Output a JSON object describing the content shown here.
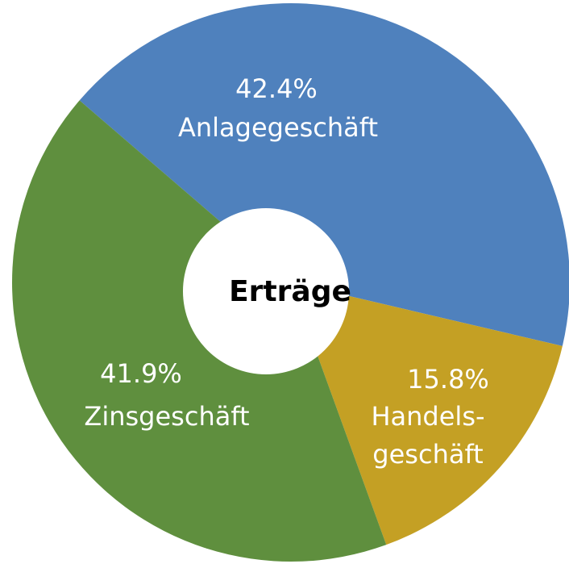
{
  "chart_data": {
    "type": "donut",
    "title": "Erträge",
    "categories": [
      [
        "Anlagegeschäft"
      ],
      [
        "Handels-",
        "geschäft"
      ],
      [
        "Zinsgeschäft"
      ]
    ],
    "values": [
      42.4,
      15.8,
      41.9
    ],
    "value_labels": [
      "42.4%",
      "15.8%",
      "41.9%"
    ],
    "colors": [
      "#4f81bd",
      "#c4a024",
      "#5f8f3e"
    ]
  }
}
